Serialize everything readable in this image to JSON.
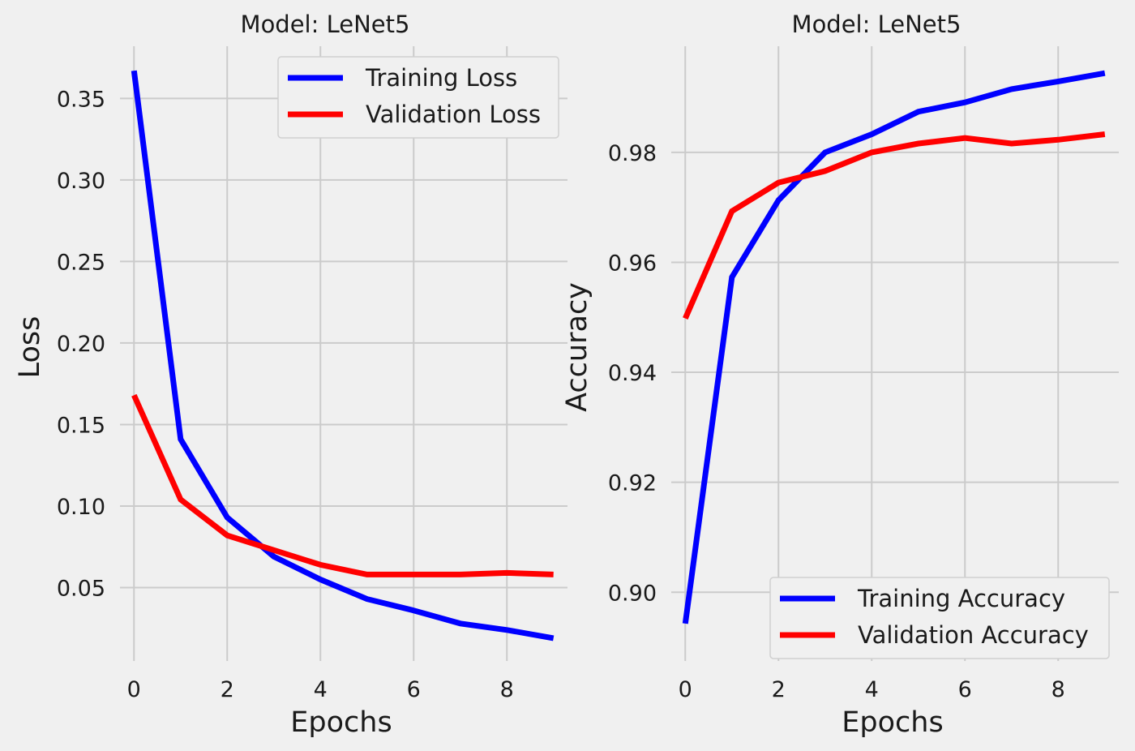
{
  "chart_data": [
    {
      "type": "line",
      "title": "Model: LeNet5",
      "xlabel": "Epochs",
      "ylabel": "Loss",
      "xlim": [
        -0.3,
        9.3
      ],
      "ylim": [
        0.005,
        0.382
      ],
      "xticks": [
        0,
        2,
        4,
        6,
        8
      ],
      "xtick_labels": [
        "0",
        "2",
        "4",
        "6",
        "8"
      ],
      "yticks": [
        0.05,
        0.1,
        0.15,
        0.2,
        0.25,
        0.3,
        0.35
      ],
      "ytick_labels": [
        "0.05",
        "0.10",
        "0.15",
        "0.20",
        "0.25",
        "0.30",
        "0.35"
      ],
      "grid": true,
      "legend_position": "top-right",
      "x": [
        0,
        1,
        2,
        3,
        4,
        5,
        6,
        7,
        8,
        9
      ],
      "series": [
        {
          "name": "Training Loss",
          "color": "#0000ff",
          "values": [
            0.367,
            0.141,
            0.093,
            0.069,
            0.055,
            0.043,
            0.036,
            0.028,
            0.024,
            0.019
          ]
        },
        {
          "name": "Validation Loss",
          "color": "#ff0000",
          "values": [
            0.168,
            0.104,
            0.082,
            0.073,
            0.064,
            0.058,
            0.058,
            0.058,
            0.059,
            0.058
          ]
        }
      ]
    },
    {
      "type": "line",
      "title": "Model: LeNet5",
      "xlabel": "Epochs",
      "ylabel": "Accuracy",
      "xlim": [
        -0.3,
        9.3
      ],
      "ylim": [
        0.8875,
        0.9993
      ],
      "xticks": [
        0,
        2,
        4,
        6,
        8
      ],
      "xtick_labels": [
        "0",
        "2",
        "4",
        "6",
        "8"
      ],
      "yticks": [
        0.9,
        0.92,
        0.94,
        0.96,
        0.98
      ],
      "ytick_labels": [
        "0.90",
        "0.92",
        "0.94",
        "0.96",
        "0.98"
      ],
      "grid": true,
      "legend_position": "bottom-right",
      "x": [
        0,
        1,
        2,
        3,
        4,
        5,
        6,
        7,
        8,
        9
      ],
      "series": [
        {
          "name": "Training Accuracy",
          "color": "#0000ff",
          "values": [
            0.8943,
            0.9573,
            0.9713,
            0.98,
            0.9833,
            0.9874,
            0.9891,
            0.9915,
            0.9929,
            0.9944
          ]
        },
        {
          "name": "Validation Accuracy",
          "color": "#ff0000",
          "values": [
            0.9498,
            0.9693,
            0.9745,
            0.9766,
            0.98,
            0.9816,
            0.9826,
            0.9816,
            0.9823,
            0.9833
          ]
        }
      ]
    }
  ]
}
